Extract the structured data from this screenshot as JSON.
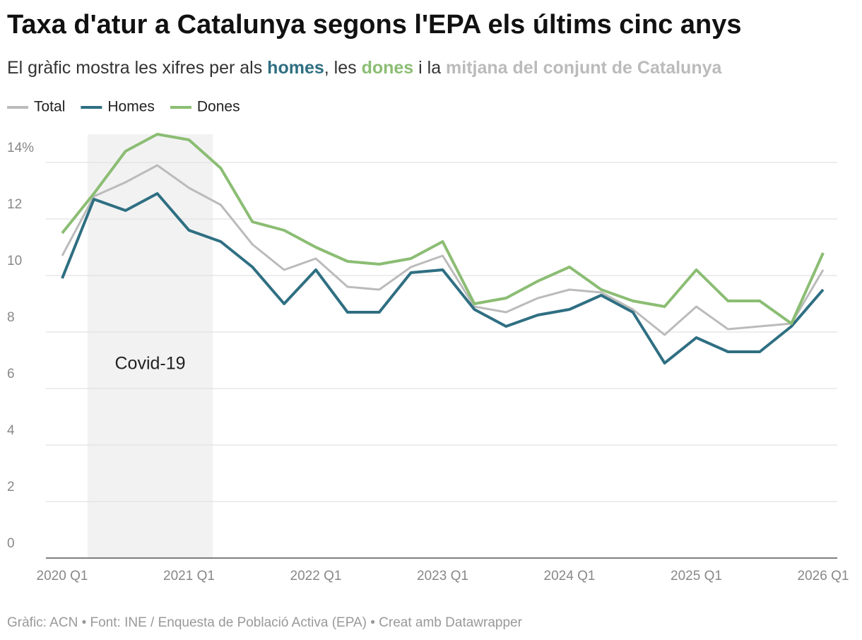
{
  "chart_data": {
    "type": "line",
    "title": "Taxa d'atur a Catalunya segons l'EPA els últims cinc anys",
    "subtitle": [
      {
        "text": "El gràfic mostra les xifres per als "
      },
      {
        "text": "homes",
        "color": "#2f6f82"
      },
      {
        "text": ", les "
      },
      {
        "text": "dones",
        "color": "#8bbd73"
      },
      {
        "text": " i la "
      },
      {
        "text": "mitjana del conjunt de Catalunya",
        "color": "#bbbbbb"
      }
    ],
    "footer": "Gràfic: ACN • Font: INE / Enquesta de Població Activa (EPA) • Creat amb Datawrapper",
    "categories": [
      "2020 Q1",
      null,
      null,
      null,
      "2021 Q1",
      null,
      null,
      null,
      "2022 Q1",
      null,
      null,
      null,
      "2023 Q1",
      null,
      null,
      null,
      "2024 Q1",
      null,
      null,
      null,
      "2025 Q1",
      null,
      null,
      null,
      "2026 Q1"
    ],
    "series": [
      {
        "name": "Total",
        "color": "#bbbbbb",
        "values": [
          10.7,
          12.8,
          13.3,
          13.9,
          13.1,
          12.5,
          11.1,
          10.2,
          10.6,
          9.6,
          9.5,
          10.3,
          10.7,
          8.9,
          8.7,
          9.2,
          9.5,
          9.4,
          8.8,
          7.9,
          8.9,
          8.1,
          8.2,
          8.3,
          10.2
        ]
      },
      {
        "name": "Homes",
        "color": "#2f6f82",
        "values": [
          9.9,
          12.7,
          12.3,
          12.9,
          11.6,
          11.2,
          10.3,
          9.0,
          10.2,
          8.7,
          8.7,
          10.1,
          10.2,
          8.8,
          8.2,
          8.6,
          8.8,
          9.3,
          8.7,
          6.9,
          7.8,
          7.3,
          7.3,
          8.2,
          9.5
        ]
      },
      {
        "name": "Dones",
        "color": "#8bbd73",
        "values": [
          11.5,
          12.9,
          14.4,
          15.0,
          14.8,
          13.8,
          11.9,
          11.6,
          11.0,
          10.5,
          10.4,
          10.6,
          11.2,
          9.0,
          9.2,
          9.8,
          10.3,
          9.5,
          9.1,
          8.9,
          10.2,
          9.1,
          9.1,
          8.3,
          10.8
        ]
      }
    ],
    "ylim": [
      0,
      15
    ],
    "yticks": [
      0,
      2,
      4,
      6,
      8,
      10,
      12,
      {
        "value": 14,
        "label": "14%"
      }
    ],
    "grid": true,
    "legend": "top-left",
    "annotations": [
      {
        "text": "Covid-19",
        "x_from": 0.8,
        "x_to": 4.75
      }
    ]
  }
}
